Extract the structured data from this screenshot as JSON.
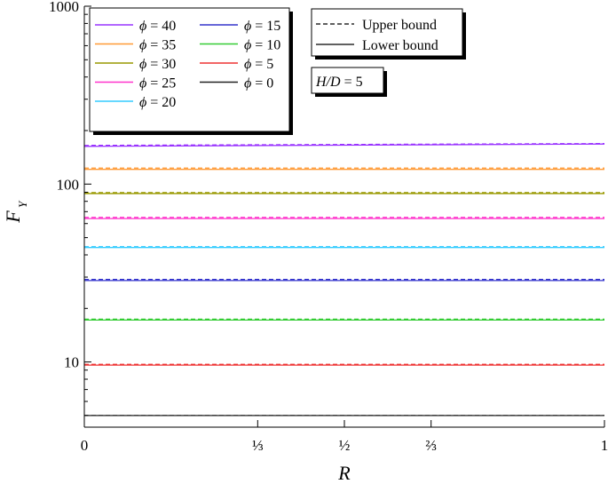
{
  "chart_data": {
    "type": "line",
    "xlabel": "R",
    "ylabel_main": "F",
    "ylabel_sub": "Y",
    "y_scale": "log",
    "ylim": [
      4.3,
      1000
    ],
    "xlim": [
      0,
      1
    ],
    "y_major_ticks": [
      {
        "value": 10,
        "label": "10"
      },
      {
        "value": 100,
        "label": "100"
      },
      {
        "value": 1000,
        "label": "1000"
      }
    ],
    "x_ticks": [
      {
        "value": 0,
        "label": "0"
      },
      {
        "value": 0.3333,
        "label": "⅓"
      },
      {
        "value": 0.5,
        "label": "½"
      },
      {
        "value": 0.6667,
        "label": "⅔"
      },
      {
        "value": 1,
        "label": "1"
      }
    ],
    "annotation": {
      "text_italic": "H/D",
      "text_rest": " = 5"
    },
    "style_legend": [
      {
        "label": "Upper bound",
        "dash": true
      },
      {
        "label": "Lower bound",
        "dash": false
      }
    ],
    "phi_symbol": "ϕ",
    "series": [
      {
        "name": "40",
        "color": "#9933ff",
        "x": [
          0,
          1
        ],
        "lower": [
          163,
          168
        ],
        "upper": [
          165,
          169
        ]
      },
      {
        "name": "35",
        "color": "#ff9933",
        "x": [
          0,
          1
        ],
        "lower": [
          121,
          121
        ],
        "upper": [
          123,
          123
        ]
      },
      {
        "name": "30",
        "color": "#999900",
        "x": [
          0,
          1
        ],
        "lower": [
          88.5,
          88.5
        ],
        "upper": [
          89.5,
          89.5
        ]
      },
      {
        "name": "25",
        "color": "#ff33cc",
        "x": [
          0,
          1
        ],
        "lower": [
          64,
          64
        ],
        "upper": [
          65,
          65
        ]
      },
      {
        "name": "20",
        "color": "#33ccff",
        "x": [
          0,
          1
        ],
        "lower": [
          44,
          44
        ],
        "upper": [
          44.5,
          44.5
        ]
      },
      {
        "name": "15",
        "color": "#3333cc",
        "x": [
          0,
          1
        ],
        "lower": [
          28.7,
          28.7
        ],
        "upper": [
          29.1,
          29.1
        ]
      },
      {
        "name": "10",
        "color": "#33cc33",
        "x": [
          0,
          1
        ],
        "lower": [
          17.2,
          17.2
        ],
        "upper": [
          17.4,
          17.4
        ]
      },
      {
        "name": "5",
        "color": "#ee3333",
        "x": [
          0,
          1
        ],
        "lower": [
          9.6,
          9.6
        ],
        "upper": [
          9.7,
          9.7
        ]
      },
      {
        "name": "0",
        "color": "#222222",
        "x": [
          0,
          1
        ],
        "lower": [
          5.0,
          5.0
        ],
        "upper": [
          5.0,
          5.0
        ]
      }
    ],
    "legend_order": [
      "40",
      "15",
      "35",
      "10",
      "30",
      "5",
      "25",
      "0",
      "20"
    ]
  }
}
